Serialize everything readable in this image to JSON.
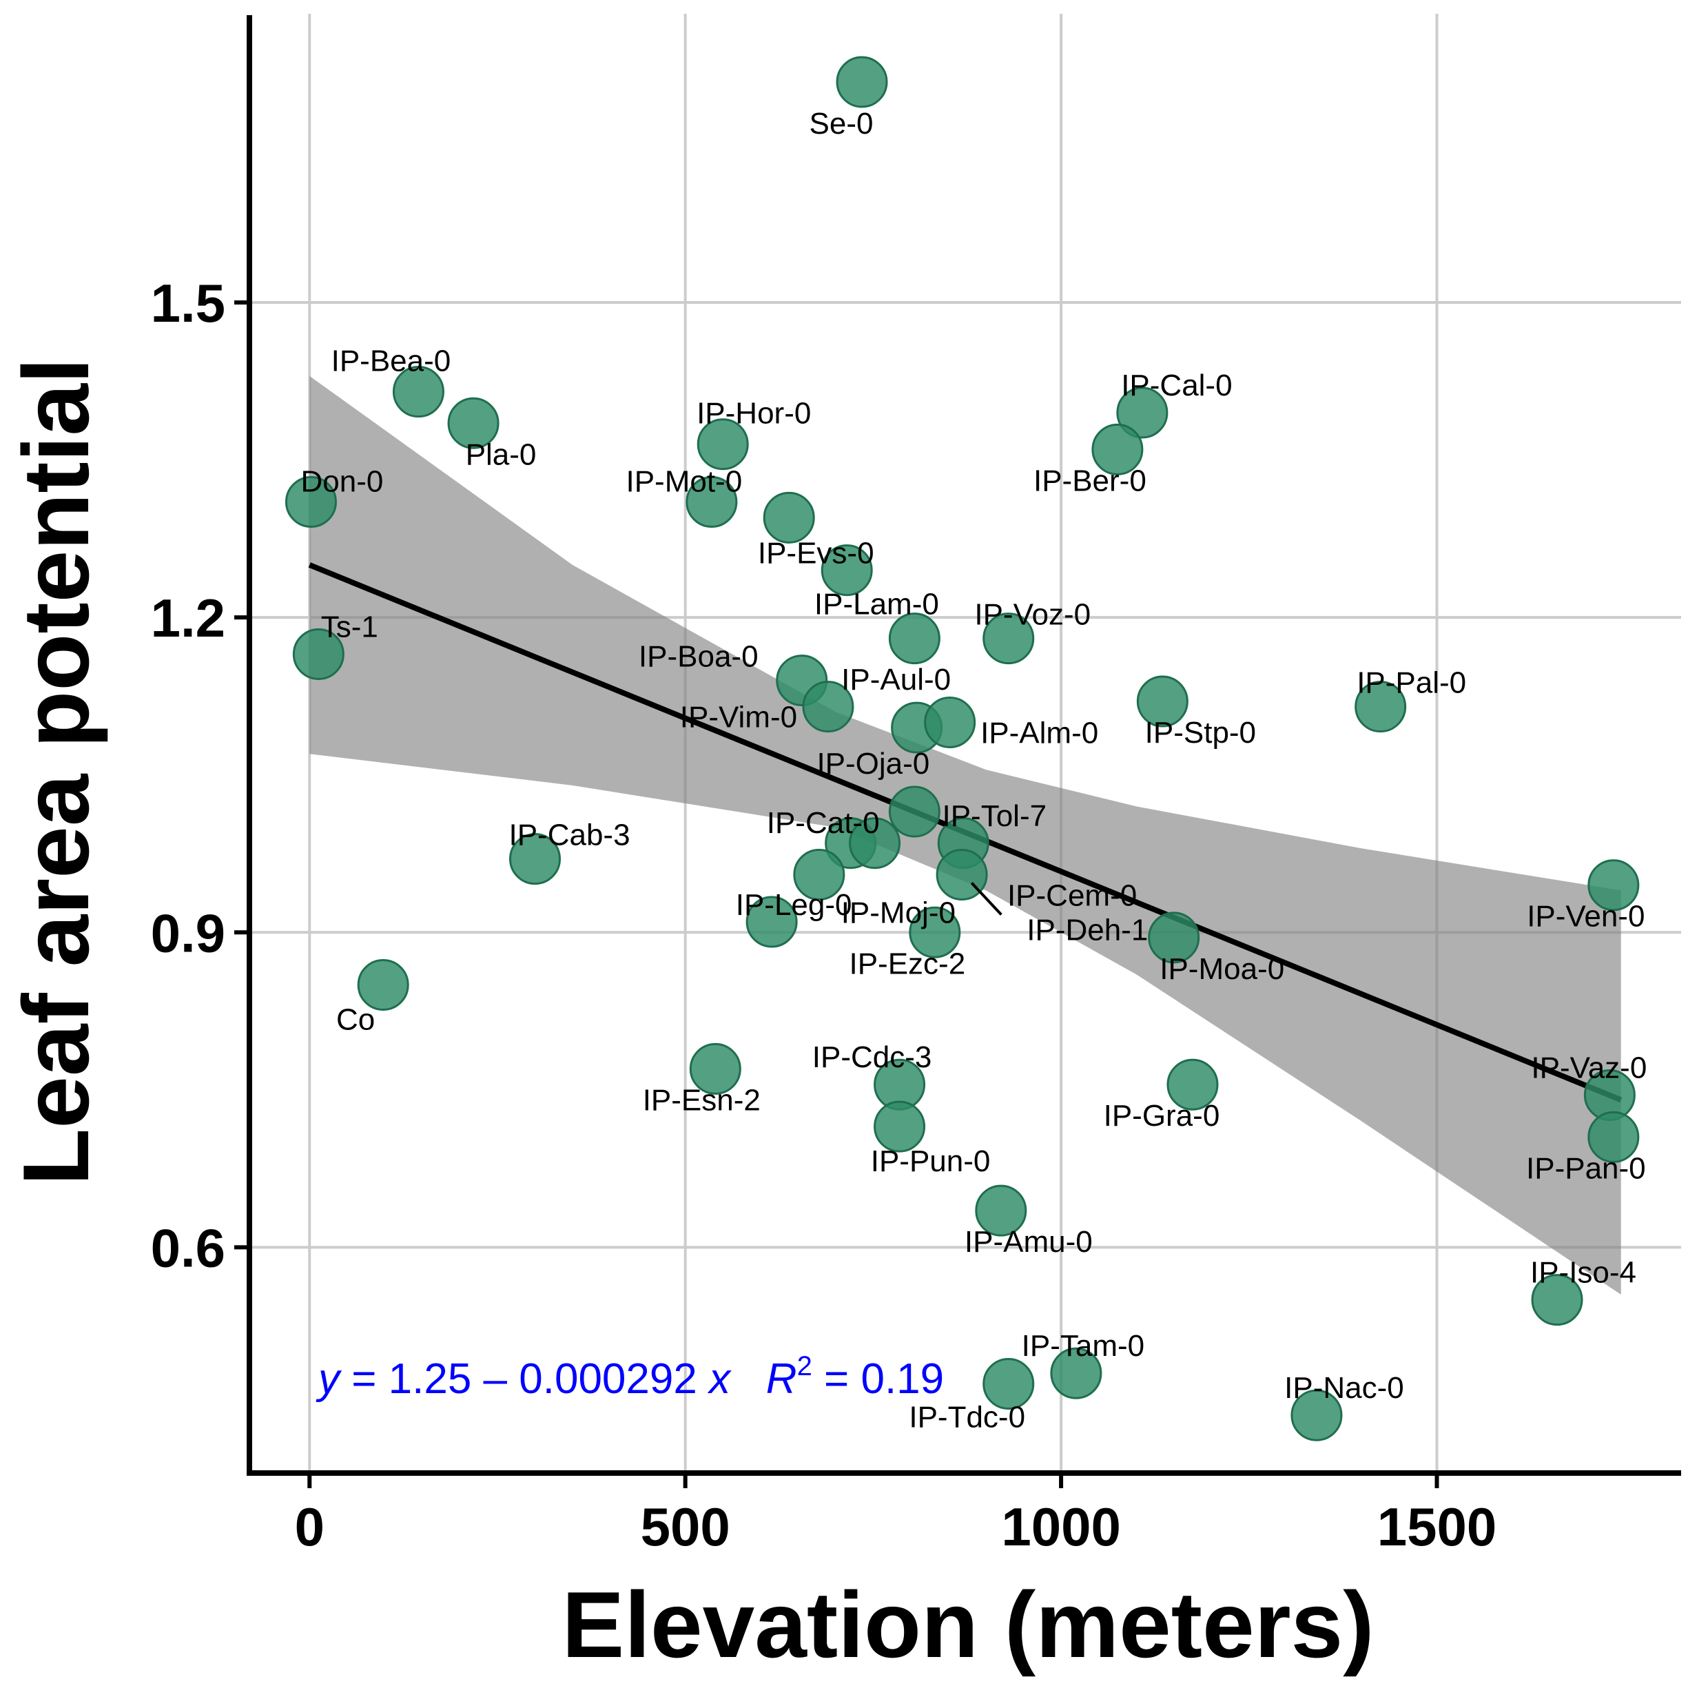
{
  "chart_data": {
    "type": "scatter",
    "xlabel": "Elevation (meters)",
    "ylabel": "Leaf area potential",
    "xlim": [
      -80,
      1825
    ],
    "ylim": [
      0.385,
      1.775
    ],
    "x_ticks": [
      0,
      500,
      1000,
      1500
    ],
    "x_tick_labels": [
      "0",
      "500",
      "1000",
      "1500"
    ],
    "y_ticks": [
      0.6,
      0.9,
      1.2,
      1.5
    ],
    "y_tick_labels": [
      "0.6",
      "0.9",
      "1.2",
      "1.5"
    ],
    "grid": true,
    "legend": "none",
    "colors": {
      "point": "#2e8b67",
      "point_stroke": "#1f6e50",
      "ribbon": "#7f7f7f",
      "fit_line": "#000000",
      "grid": "#cccccc",
      "equation": "#0000ff"
    },
    "fit": {
      "intercept": 1.25,
      "slope": -0.000292,
      "x_range": [
        0,
        1745
      ],
      "ci_upper": [
        [
          0,
          1.43
        ],
        [
          350,
          1.25
        ],
        [
          700,
          1.11
        ],
        [
          900,
          1.055
        ],
        [
          1100,
          1.02
        ],
        [
          1400,
          0.98
        ],
        [
          1745,
          0.94
        ]
      ],
      "ci_lower": [
        [
          0,
          1.07
        ],
        [
          350,
          1.04
        ],
        [
          700,
          1.0
        ],
        [
          900,
          0.94
        ],
        [
          1100,
          0.86
        ],
        [
          1400,
          0.72
        ],
        [
          1745,
          0.555
        ]
      ]
    },
    "equation": {
      "y_var": "y",
      "y_rest": " = 1.25 – 0.000292 ",
      "x_var": "x",
      "r_var": "R",
      "r_sup": "2",
      "r_rest": " = 0.19"
    },
    "points": [
      {
        "label": "Se-0",
        "x": 735,
        "y": 1.71
      },
      {
        "label": "IP-Bea-0",
        "x": 145,
        "y": 1.415
      },
      {
        "label": "Pla-0",
        "x": 218,
        "y": 1.385
      },
      {
        "label": "IP-Hor-0",
        "x": 550,
        "y": 1.365
      },
      {
        "label": "IP-Mot-0",
        "x": 535,
        "y": 1.31
      },
      {
        "label": "Don-0",
        "x": 2,
        "y": 1.31
      },
      {
        "label": "IP-Cal-0",
        "x": 1108,
        "y": 1.395
      },
      {
        "label": "IP-Ber-0",
        "x": 1075,
        "y": 1.36
      },
      {
        "label": "",
        "x": 638,
        "y": 1.295
      },
      {
        "label": "IP-Evs-0",
        "x": 715,
        "y": 1.245
      },
      {
        "label": "IP-Lam-0",
        "x": 805,
        "y": 1.18
      },
      {
        "label": "IP-Voz-0",
        "x": 930,
        "y": 1.18
      },
      {
        "label": "Ts-1",
        "x": 12,
        "y": 1.165
      },
      {
        "label": "IP-Boa-0",
        "x": 655,
        "y": 1.14
      },
      {
        "label": "IP-Vim-0",
        "x": 690,
        "y": 1.115
      },
      {
        "label": "IP-Aul-0",
        "x": 808,
        "y": 1.095
      },
      {
        "label": "IP-Alm-0",
        "x": 852,
        "y": 1.1
      },
      {
        "label": "IP-Stp-0",
        "x": 1135,
        "y": 1.12
      },
      {
        "label": "IP-Pal-0",
        "x": 1425,
        "y": 1.115
      },
      {
        "label": "IP-Oja-0",
        "x": 805,
        "y": 1.015
      },
      {
        "label": "IP-Cab-3",
        "x": 300,
        "y": 0.97
      },
      {
        "label": "IP-Cat-0",
        "x": 720,
        "y": 0.985
      },
      {
        "label": "",
        "x": 752,
        "y": 0.985
      },
      {
        "label": "IP-Tol-7",
        "x": 870,
        "y": 0.985
      },
      {
        "label": "IP-Moj-0",
        "x": 678,
        "y": 0.955
      },
      {
        "label": "IP-Cem-0",
        "x": 868,
        "y": 0.955
      },
      {
        "label": "IP-Ven-0",
        "x": 1735,
        "y": 0.945
      },
      {
        "label": "IP-Leg-0",
        "x": 615,
        "y": 0.91
      },
      {
        "label": "IP-Ezc-2",
        "x": 832,
        "y": 0.9
      },
      {
        "label": "IP-Moa-0",
        "x": 1150,
        "y": 0.895
      },
      {
        "label": "Co",
        "x": 98,
        "y": 0.85
      },
      {
        "label": "IP-Esn-2",
        "x": 540,
        "y": 0.77
      },
      {
        "label": "IP-Cdc-3",
        "x": 785,
        "y": 0.755
      },
      {
        "label": "IP-Gra-0",
        "x": 1175,
        "y": 0.755
      },
      {
        "label": "IP-Vaz-0",
        "x": 1730,
        "y": 0.745
      },
      {
        "label": "IP-Pun-0",
        "x": 785,
        "y": 0.715
      },
      {
        "label": "IP-Pan-0",
        "x": 1735,
        "y": 0.705
      },
      {
        "label": "IP-Amu-0",
        "x": 920,
        "y": 0.635
      },
      {
        "label": "IP-Iso-4",
        "x": 1660,
        "y": 0.55
      },
      {
        "label": "IP-Tam-0",
        "x": 1020,
        "y": 0.48
      },
      {
        "label": "IP-Tdc-0",
        "x": 930,
        "y": 0.47
      },
      {
        "label": "IP-Nac-0",
        "x": 1340,
        "y": 0.44
      },
      {
        "label": "IP-Deh-1",
        "x": 870,
        "y": 0.955
      }
    ],
    "point_label_positions": {}
  }
}
